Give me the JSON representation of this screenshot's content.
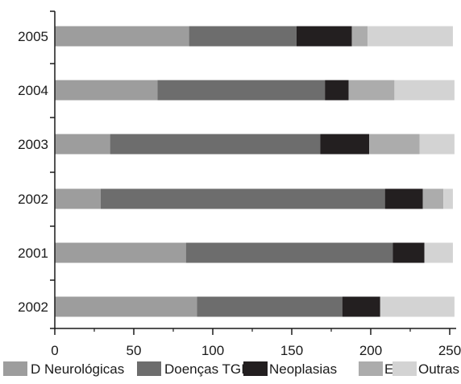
{
  "chart_data": {
    "type": "bar",
    "orientation": "horizontal",
    "stacked": true,
    "categories": [
      "2005",
      "2004",
      "2003",
      "2002",
      "2001",
      "2002"
    ],
    "series": [
      {
        "name": "D Neurológicas",
        "color": "#9d9d9d",
        "values": [
          85,
          65,
          35,
          29,
          83,
          90
        ]
      },
      {
        "name": "Doenças TGI",
        "color": "#6d6d6d",
        "values": [
          68,
          106,
          133,
          180,
          131,
          92
        ]
      },
      {
        "name": "Neoplasias",
        "color": "#231f20",
        "values": [
          35,
          15,
          31,
          24,
          20,
          24
        ]
      },
      {
        "name": "EBC",
        "color": "#acacac",
        "values": [
          10,
          29,
          32,
          13,
          0,
          0
        ]
      },
      {
        "name": "Outras",
        "color": "#d3d3d3",
        "values": [
          54,
          38,
          22,
          6,
          18,
          47
        ]
      }
    ],
    "xlim": [
      0,
      250
    ],
    "xticks": [
      0,
      50,
      100,
      150,
      200,
      250
    ],
    "xlabel": "",
    "ylabel": "",
    "title": "",
    "grid": false,
    "legend_position": "bottom"
  }
}
